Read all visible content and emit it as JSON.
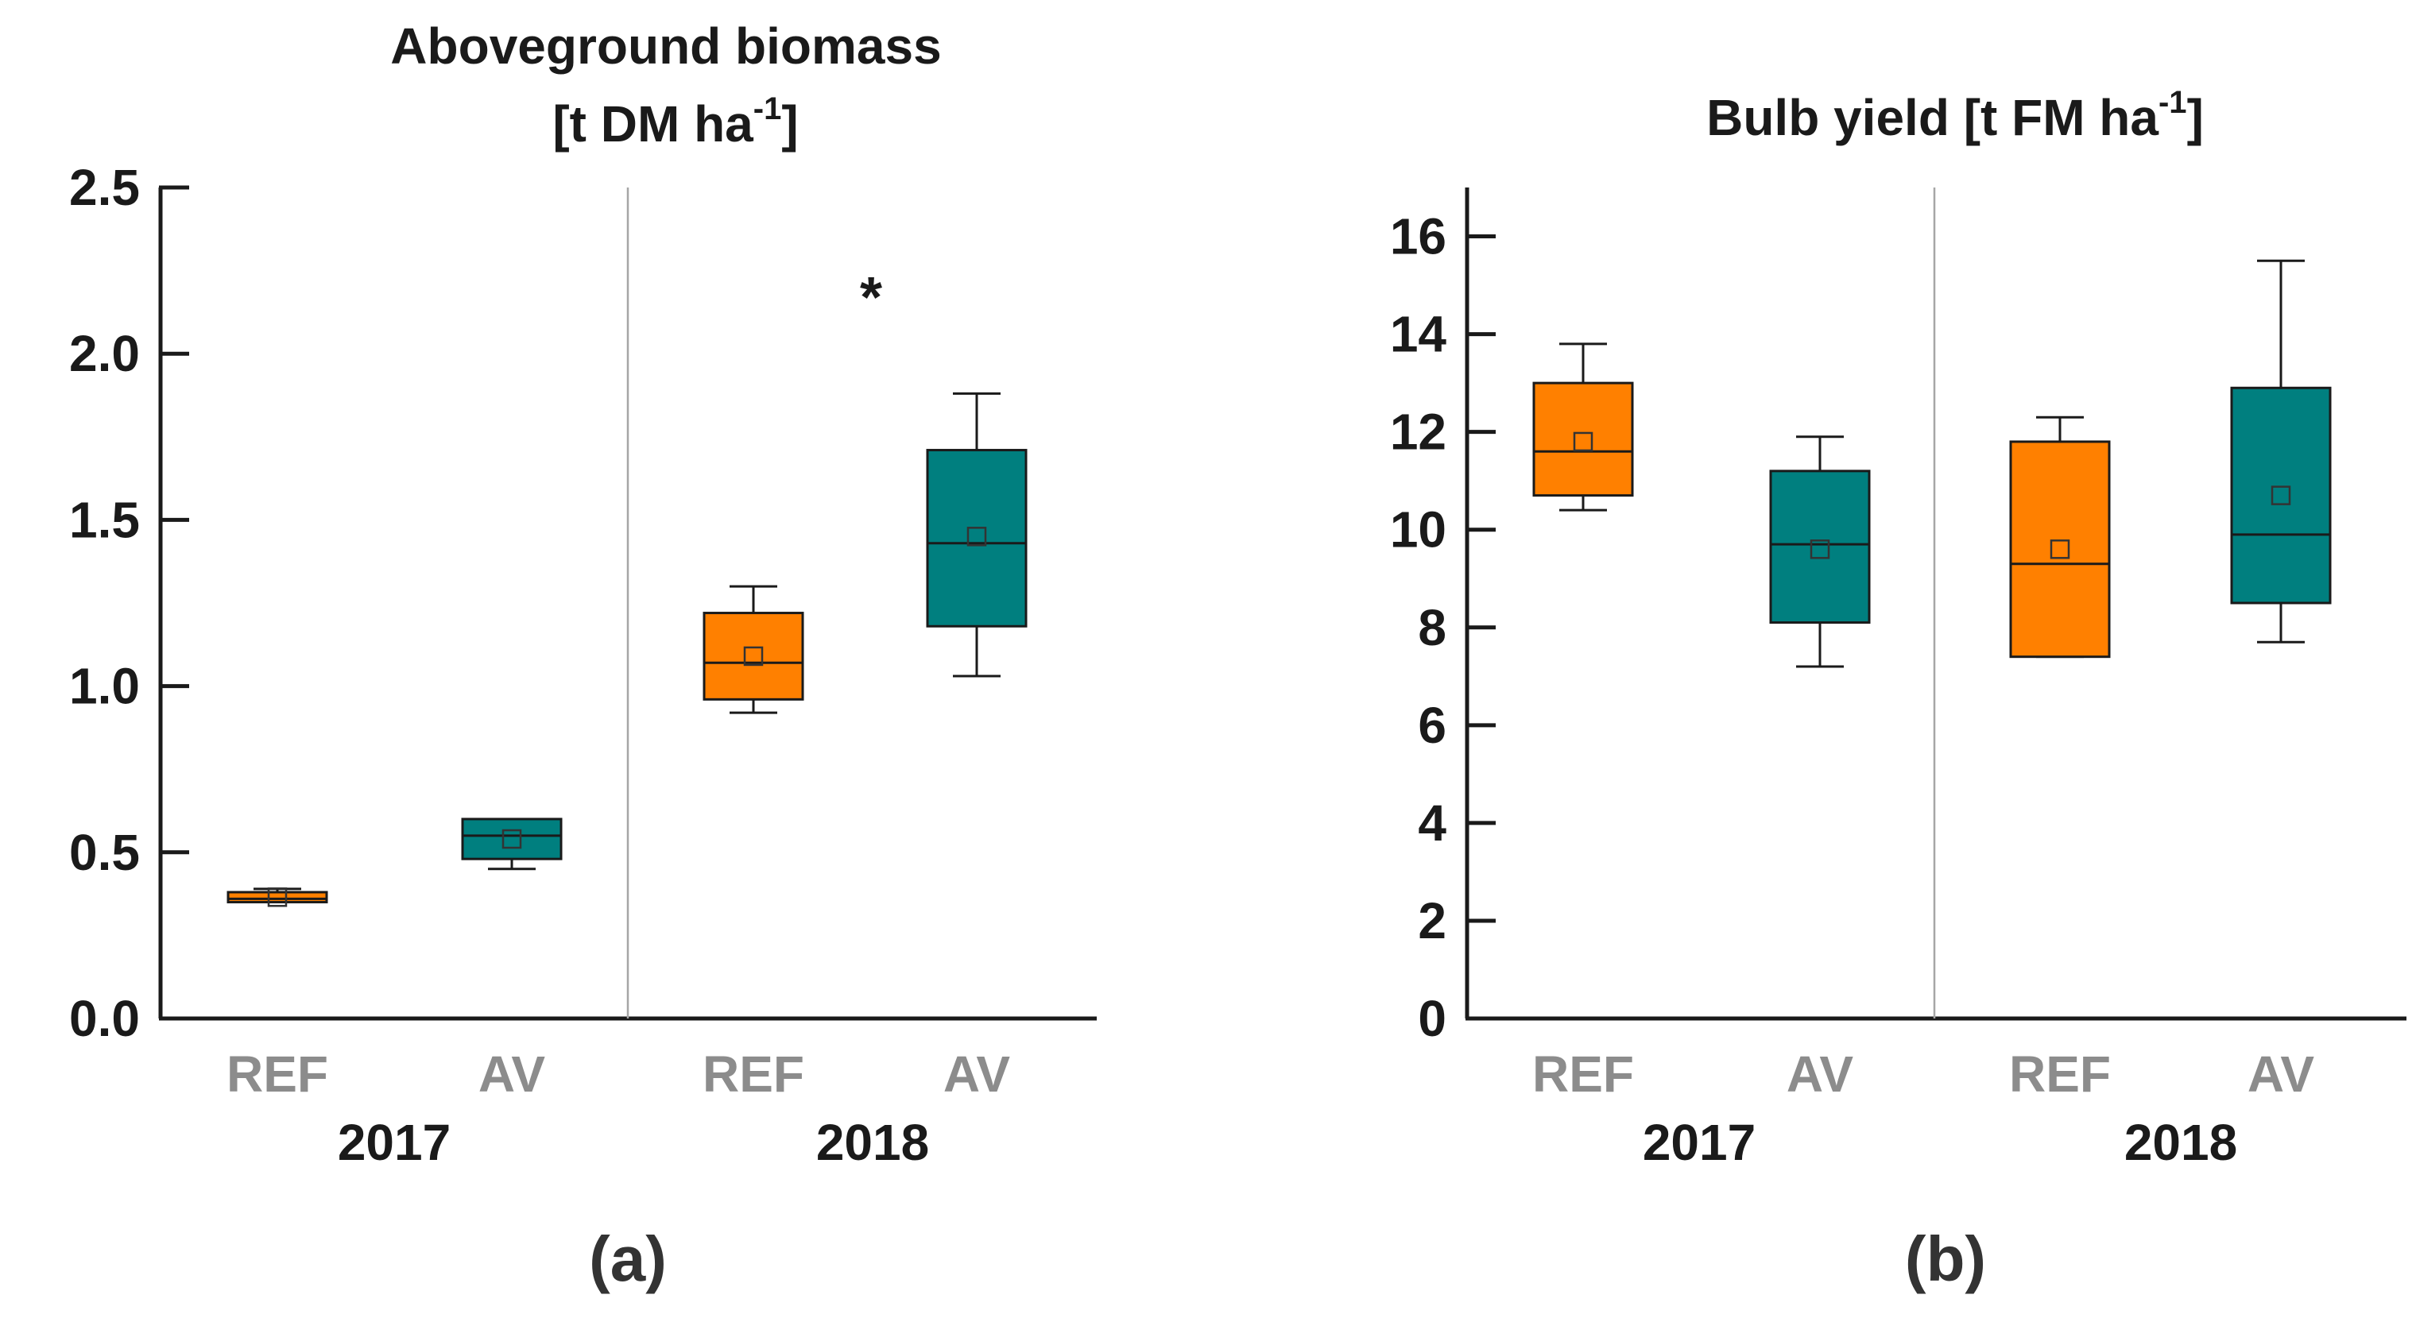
{
  "colors": {
    "REF": "#ff8000",
    "AV": "#007f7f",
    "axis": "#1a1a1a",
    "divider": "#a6a6a6"
  },
  "chart_data": [
    {
      "type": "box",
      "panel_label": "(a)",
      "title_line1": "Aboveground biomass",
      "title_line2_pre": "[t DM ha",
      "title_line2_sup": "-1",
      "title_line2_post": "]",
      "ylim": [
        0,
        2.5
      ],
      "yticks": [
        0,
        0.5,
        1.0,
        1.5,
        2.0,
        2.5
      ],
      "ytick_labels": [
        "0.0",
        "0.5",
        "1.0",
        "1.5",
        "2.0",
        "2.5"
      ],
      "groups": [
        "2017",
        "2018"
      ],
      "categories": [
        "REF",
        "AV",
        "REF",
        "AV"
      ],
      "boxes": [
        {
          "group": "2017",
          "treatment": "REF",
          "whisker_low": 0.35,
          "q1": 0.35,
          "median": 0.36,
          "q3": 0.38,
          "whisker_high": 0.39,
          "mean": 0.365
        },
        {
          "group": "2017",
          "treatment": "AV",
          "whisker_low": 0.45,
          "q1": 0.48,
          "median": 0.55,
          "q3": 0.6,
          "whisker_high": 0.6,
          "mean": 0.54
        },
        {
          "group": "2018",
          "treatment": "REF",
          "whisker_low": 0.92,
          "q1": 0.96,
          "median": 1.07,
          "q3": 1.22,
          "whisker_high": 1.3,
          "mean": 1.09
        },
        {
          "group": "2018",
          "treatment": "AV",
          "whisker_low": 1.03,
          "q1": 1.18,
          "median": 1.43,
          "q3": 1.71,
          "whisker_high": 1.88,
          "mean": 1.45
        }
      ],
      "annotation": {
        "text": "*",
        "group": "2018",
        "y": 2.22
      }
    },
    {
      "type": "box",
      "panel_label": "(b)",
      "title_line1": "",
      "title_line2_pre": "Bulb yield [t FM ha",
      "title_line2_sup": "-1",
      "title_line2_post": "]",
      "ylim": [
        0,
        17
      ],
      "yticks": [
        0,
        2,
        4,
        6,
        8,
        10,
        12,
        14,
        16
      ],
      "ytick_labels": [
        "0",
        "2",
        "4",
        "6",
        "8",
        "10",
        "12",
        "14",
        "16"
      ],
      "groups": [
        "2017",
        "2018"
      ],
      "categories": [
        "REF",
        "AV",
        "REF",
        "AV"
      ],
      "boxes": [
        {
          "group": "2017",
          "treatment": "REF",
          "whisker_low": 10.4,
          "q1": 10.7,
          "median": 11.6,
          "q3": 13.0,
          "whisker_high": 13.8,
          "mean": 11.8
        },
        {
          "group": "2017",
          "treatment": "AV",
          "whisker_low": 7.2,
          "q1": 8.1,
          "median": 9.7,
          "q3": 11.2,
          "whisker_high": 11.9,
          "mean": 9.6
        },
        {
          "group": "2018",
          "treatment": "REF",
          "whisker_low": 7.4,
          "q1": 7.4,
          "median": 9.3,
          "q3": 11.8,
          "whisker_high": 12.3,
          "mean": 9.6
        },
        {
          "group": "2018",
          "treatment": "AV",
          "whisker_low": 7.7,
          "q1": 8.5,
          "median": 9.9,
          "q3": 12.9,
          "whisker_high": 15.5,
          "mean": 10.7
        }
      ]
    }
  ]
}
